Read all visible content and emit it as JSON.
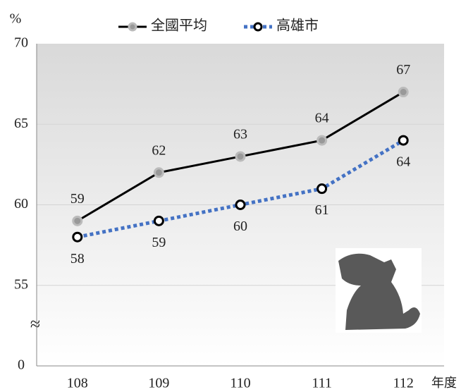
{
  "chart_data": {
    "type": "line",
    "y_unit": "%",
    "x_unit": "年度",
    "axis_break": "≈",
    "categories": [
      "108",
      "109",
      "110",
      "111",
      "112"
    ],
    "series": [
      {
        "name": "全國平均",
        "color": "#000000",
        "marker_fill": "#999999",
        "dash": "solid",
        "label_side": "above",
        "values": [
          59,
          62,
          63,
          64,
          67
        ]
      },
      {
        "name": "高雄市",
        "color": "#4472c4",
        "marker_fill": "#ffffff",
        "dash": "dotted",
        "label_side": "below",
        "values": [
          58,
          59,
          60,
          61,
          64
        ]
      }
    ],
    "ylim": [
      0,
      70
    ],
    "yticks": [
      0,
      55,
      60,
      65,
      70
    ],
    "grid": true
  }
}
